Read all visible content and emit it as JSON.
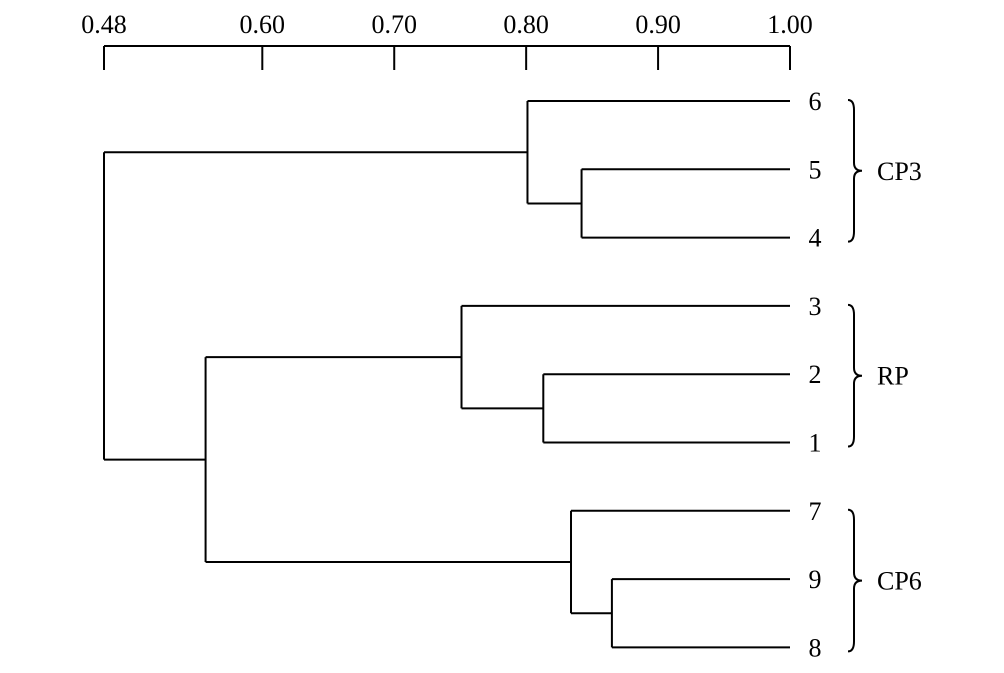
{
  "axis": {
    "ticks": [
      {
        "value": 0.48,
        "label": "0.48"
      },
      {
        "value": 0.6,
        "label": "0.60"
      },
      {
        "value": 0.7,
        "label": "0.70"
      },
      {
        "value": 0.8,
        "label": "0.80"
      },
      {
        "value": 0.9,
        "label": "0.90"
      },
      {
        "value": 1.0,
        "label": "1.00"
      }
    ],
    "range": [
      0.48,
      1.0
    ]
  },
  "leaves": [
    {
      "id": "6",
      "label": "6"
    },
    {
      "id": "5",
      "label": "5"
    },
    {
      "id": "4",
      "label": "4"
    },
    {
      "id": "3",
      "label": "3"
    },
    {
      "id": "2",
      "label": "2"
    },
    {
      "id": "1",
      "label": "1"
    },
    {
      "id": "7",
      "label": "7"
    },
    {
      "id": "9",
      "label": "9"
    },
    {
      "id": "8",
      "label": "8"
    }
  ],
  "merges": [
    {
      "id": "A",
      "children": [
        "5",
        "4"
      ],
      "similarity": 0.842
    },
    {
      "id": "B",
      "children": [
        "6",
        "A"
      ],
      "similarity": 0.801
    },
    {
      "id": "C",
      "children": [
        "2",
        "1"
      ],
      "similarity": 0.813
    },
    {
      "id": "D",
      "children": [
        "3",
        "C"
      ],
      "similarity": 0.751
    },
    {
      "id": "E",
      "children": [
        "9",
        "8"
      ],
      "similarity": 0.865
    },
    {
      "id": "F",
      "children": [
        "7",
        "E"
      ],
      "similarity": 0.834
    },
    {
      "id": "G",
      "children": [
        "D",
        "F"
      ],
      "similarity": 0.557
    },
    {
      "id": "H",
      "children": [
        "B",
        "G"
      ],
      "similarity": 0.48
    }
  ],
  "groups": [
    {
      "label": "CP3",
      "leaves": [
        "6",
        "5",
        "4"
      ]
    },
    {
      "label": "RP",
      "leaves": [
        "3",
        "2",
        "1"
      ]
    },
    {
      "label": "CP6",
      "leaves": [
        "7",
        "9",
        "8"
      ]
    }
  ]
}
